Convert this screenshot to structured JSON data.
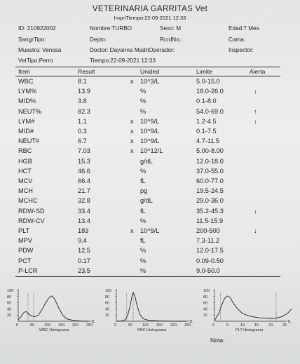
{
  "header": {
    "title": "VETERINARIA GARRITAS Vet",
    "print_time": "ImpriTiempo:22-09-2021 12:33",
    "id": "ID: 210922002",
    "nombre": "Nombre:TURBO",
    "sexo": "Sexo: M",
    "edad": "Edad:7 Mes",
    "sangre_tipo": "SangrTipo:",
    "depto": "Depto:",
    "rcrd": "RcrdNo.:",
    "cama": "Cama:",
    "muestra": "Muestra: Venosa",
    "doctor": "Doctor: Dayanna MadriOperador:",
    "inspector": "Inspector:",
    "vet_tipo": "VetTipo:Perro",
    "tiempo": "Tiempo:22-09-2021 12:33"
  },
  "table": {
    "columns": [
      "Item",
      "Result",
      "Unided",
      "Limite",
      "Alerta"
    ],
    "rows": [
      {
        "item": "WBC",
        "result": "8.1",
        "x": "x",
        "unit": "10^3/L",
        "limit": "5.0-15.0",
        "alert": ""
      },
      {
        "item": "LYM%",
        "result": "13.9",
        "x": "",
        "unit": "%",
        "limit": "18.0-26.0",
        "alert": "↓"
      },
      {
        "item": "MID%",
        "result": "3.8",
        "x": "",
        "unit": "%",
        "limit": "0.1-8.0",
        "alert": ""
      },
      {
        "item": "NEUT%",
        "result": "82.3",
        "x": "",
        "unit": "%",
        "limit": "54.0-69.0",
        "alert": "↑"
      },
      {
        "item": "LYM#",
        "result": "1.1",
        "x": "x",
        "unit": "10^9/L",
        "limit": "1.2-4.5",
        "alert": "↓"
      },
      {
        "item": "MID#",
        "result": "0.3",
        "x": "x",
        "unit": "10^9/L",
        "limit": "0.1-7.5",
        "alert": ""
      },
      {
        "item": "NEUT#",
        "result": "6.7",
        "x": "x",
        "unit": "10^9/L",
        "limit": "4.7-11.5",
        "alert": ""
      },
      {
        "item": "RBC",
        "result": "7.03",
        "x": "x",
        "unit": "10^12/L",
        "limit": "5.00-8.00",
        "alert": ""
      },
      {
        "item": "HGB",
        "result": "15.3",
        "x": "",
        "unit": "g/dL",
        "limit": "12.0-18.0",
        "alert": ""
      },
      {
        "item": "HCT",
        "result": "46.6",
        "x": "",
        "unit": "%",
        "limit": "37.0-55.0",
        "alert": ""
      },
      {
        "item": "MCV",
        "result": "66.4",
        "x": "",
        "unit": "fL",
        "limit": "60.0-77.0",
        "alert": ""
      },
      {
        "item": "MCH",
        "result": "21.7",
        "x": "",
        "unit": "pg",
        "limit": "19.5-24.5",
        "alert": ""
      },
      {
        "item": "MCHC",
        "result": "32.8",
        "x": "",
        "unit": "g/dL",
        "limit": "29.0-36.0",
        "alert": ""
      },
      {
        "item": "RDW-SD",
        "result": "33.4",
        "x": "",
        "unit": "fL",
        "limit": "35.2-45.3",
        "alert": "↓"
      },
      {
        "item": "RDW-CV",
        "result": "13.4",
        "x": "",
        "unit": "%",
        "limit": "11.5-15.9",
        "alert": ""
      },
      {
        "item": "PLT",
        "result": "183",
        "x": "x",
        "unit": "10^9/L",
        "limit": "200-500",
        "alert": "↓"
      },
      {
        "item": "MPV",
        "result": "9.4",
        "x": "",
        "unit": "fL",
        "limit": "7.3-11.2",
        "alert": ""
      },
      {
        "item": "PDW",
        "result": "12.5",
        "x": "",
        "unit": "%",
        "limit": "12.0-17.5",
        "alert": ""
      },
      {
        "item": "PCT",
        "result": "0.17",
        "x": "",
        "unit": "%",
        "limit": "0.09-0.50",
        "alert": ""
      },
      {
        "item": "P-LCR",
        "result": "23.5",
        "x": "",
        "unit": "%",
        "limit": "9.0-50.0",
        "alert": ""
      }
    ]
  },
  "histograms": [
    {
      "name": "WBC Histograma",
      "y_ticks": [
        "100",
        "80",
        "60",
        "40",
        "20"
      ],
      "x_ticks": [
        "0",
        "50",
        "100",
        "150",
        "200",
        "250"
      ],
      "unit": "fL",
      "curve": [
        [
          0,
          0.05
        ],
        [
          10,
          0.15
        ],
        [
          20,
          0.28
        ],
        [
          28,
          0.32
        ],
        [
          35,
          0.25
        ],
        [
          45,
          0.18
        ],
        [
          58,
          0.14
        ],
        [
          72,
          0.2
        ],
        [
          85,
          0.38
        ],
        [
          98,
          0.6
        ],
        [
          110,
          0.76
        ],
        [
          120,
          0.82
        ],
        [
          130,
          0.72
        ],
        [
          145,
          0.42
        ],
        [
          160,
          0.18
        ],
        [
          175,
          0.07
        ],
        [
          200,
          0.02
        ],
        [
          230,
          0
        ],
        [
          250,
          0
        ]
      ],
      "markers": [
        35,
        55
      ]
    },
    {
      "name": "RBC Histograma",
      "y_ticks": [
        "100",
        "80",
        "60",
        "40",
        "20"
      ],
      "x_ticks": [
        "0",
        "50",
        "100",
        "150",
        "200",
        "250"
      ],
      "unit": "fL",
      "curve": [
        [
          0,
          0
        ],
        [
          20,
          0.01
        ],
        [
          32,
          0.05
        ],
        [
          40,
          0.18
        ],
        [
          48,
          0.45
        ],
        [
          55,
          0.78
        ],
        [
          60,
          0.93
        ],
        [
          66,
          0.82
        ],
        [
          74,
          0.5
        ],
        [
          84,
          0.22
        ],
        [
          96,
          0.08
        ],
        [
          115,
          0.03
        ],
        [
          150,
          0.01
        ],
        [
          200,
          0
        ],
        [
          250,
          0
        ]
      ],
      "markers": [
        37,
        60
      ]
    },
    {
      "name": "PLT Histograma",
      "y_ticks": [
        "100",
        "80",
        "60",
        "40",
        "20"
      ],
      "x_ticks": [
        "0",
        "5",
        "10",
        "15",
        "20",
        "25"
      ],
      "unit": "fL",
      "curve": [
        [
          0,
          0.02
        ],
        [
          1.5,
          0.25
        ],
        [
          2.5,
          0.5
        ],
        [
          3.5,
          0.72
        ],
        [
          4.5,
          0.82
        ],
        [
          5.5,
          0.78
        ],
        [
          6.5,
          0.62
        ],
        [
          8,
          0.42
        ],
        [
          10,
          0.25
        ],
        [
          12,
          0.18
        ],
        [
          14,
          0.14
        ],
        [
          16,
          0.11
        ],
        [
          18,
          0.1
        ],
        [
          20,
          0.09
        ],
        [
          22,
          0.1
        ],
        [
          24,
          0.15
        ],
        [
          26,
          0.25
        ],
        [
          27.5,
          0.4
        ]
      ],
      "markers": [
        2.2,
        22
      ]
    }
  ],
  "footer": {
    "nota": "Nota:"
  }
}
